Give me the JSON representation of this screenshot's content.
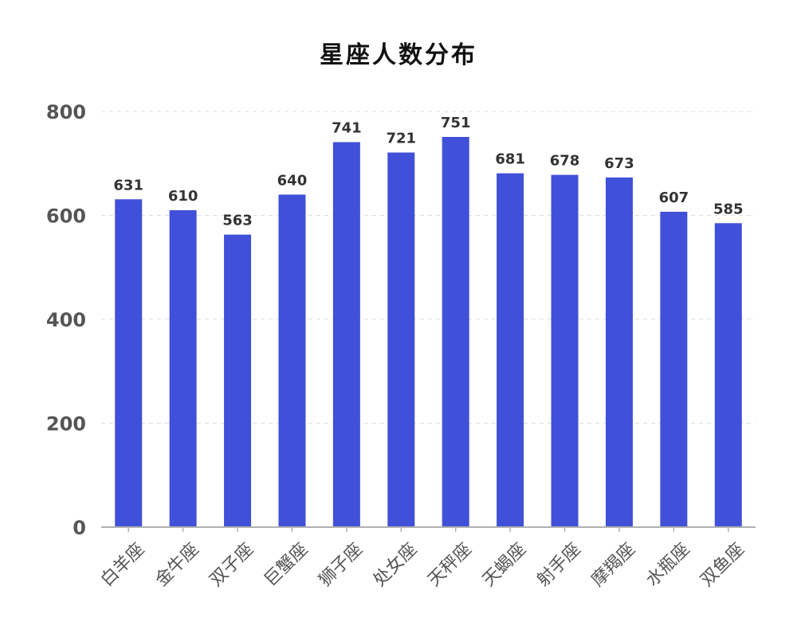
{
  "colors": {
    "bar": "#4150d8",
    "axis": "#b0b0b0",
    "grid": "#dddddd",
    "tick_label": "#555555",
    "value_label": "#333333",
    "title": "#111111"
  },
  "chart_data": {
    "type": "bar",
    "title": "星座人数分布",
    "xlabel": "",
    "ylabel": "",
    "categories": [
      "白羊座",
      "金牛座",
      "双子座",
      "巨蟹座",
      "狮子座",
      "处女座",
      "天秤座",
      "天蝎座",
      "射手座",
      "摩羯座",
      "水瓶座",
      "双鱼座"
    ],
    "values": [
      631,
      610,
      563,
      640,
      741,
      721,
      751,
      681,
      678,
      673,
      607,
      585
    ],
    "ylim": [
      0,
      800
    ],
    "yticks": [
      0,
      200,
      400,
      600,
      800
    ],
    "grid": true,
    "grid_style": "dashed",
    "data_labels": true,
    "legend": "none",
    "x_tick_rotation": "45deg"
  }
}
